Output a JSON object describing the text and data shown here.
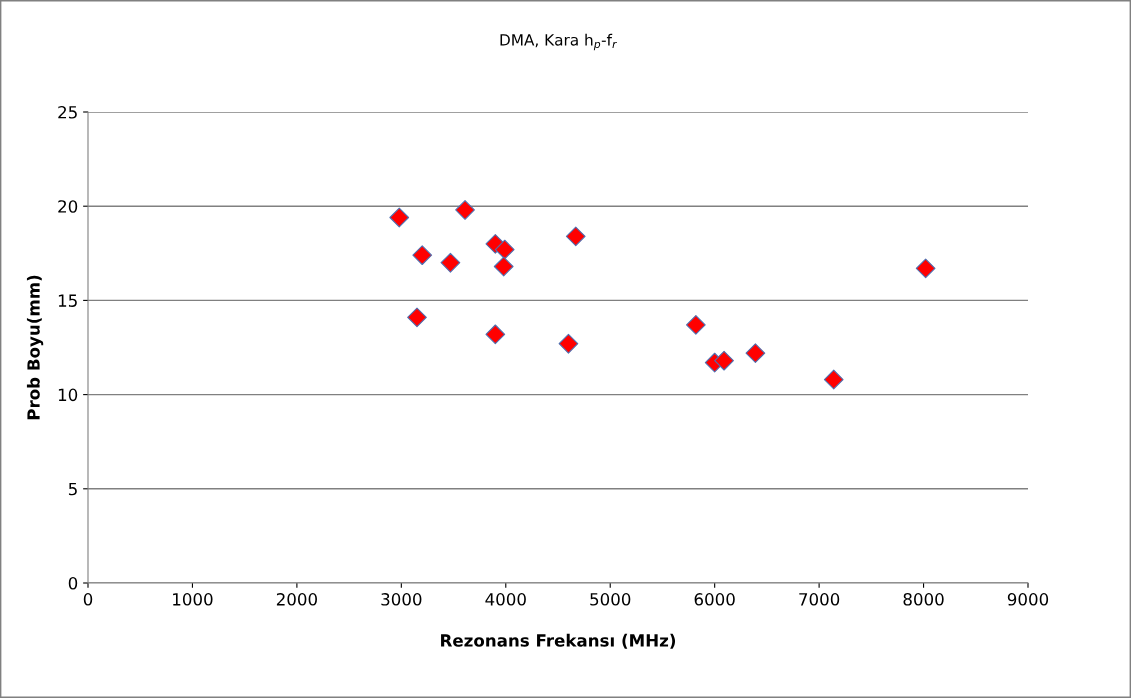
{
  "chart_data": {
    "type": "scatter",
    "title": "DMA, Kara h$_{p}$-f$_{r}$",
    "xlabel": "Rezonans Frekansı (MHz)",
    "ylabel": "Prob Boyu(mm)",
    "x": [
      2980,
      3610,
      3200,
      3470,
      3900,
      3990,
      3980,
      4670,
      3150,
      3900,
      4600,
      5820,
      6000,
      6090,
      6390,
      7140,
      8020
    ],
    "series": [
      {
        "color": "#ff0000",
        "values": [
          19.4,
          19.8,
          17.4,
          17.0,
          18.0,
          17.7,
          16.8,
          18.4,
          14.1,
          13.2,
          12.7,
          13.7,
          11.7,
          11.8,
          12.2,
          10.8,
          16.7
        ]
      }
    ],
    "xlim": [
      0,
      9000
    ],
    "xticks": [
      0,
      1000,
      2000,
      3000,
      4000,
      5000,
      6000,
      7000,
      8000,
      9000
    ],
    "ylim": [
      0,
      25
    ],
    "yticks": [
      0,
      5,
      10,
      15,
      20,
      25
    ],
    "grid": "y",
    "marker": "diamond",
    "legend": false
  }
}
